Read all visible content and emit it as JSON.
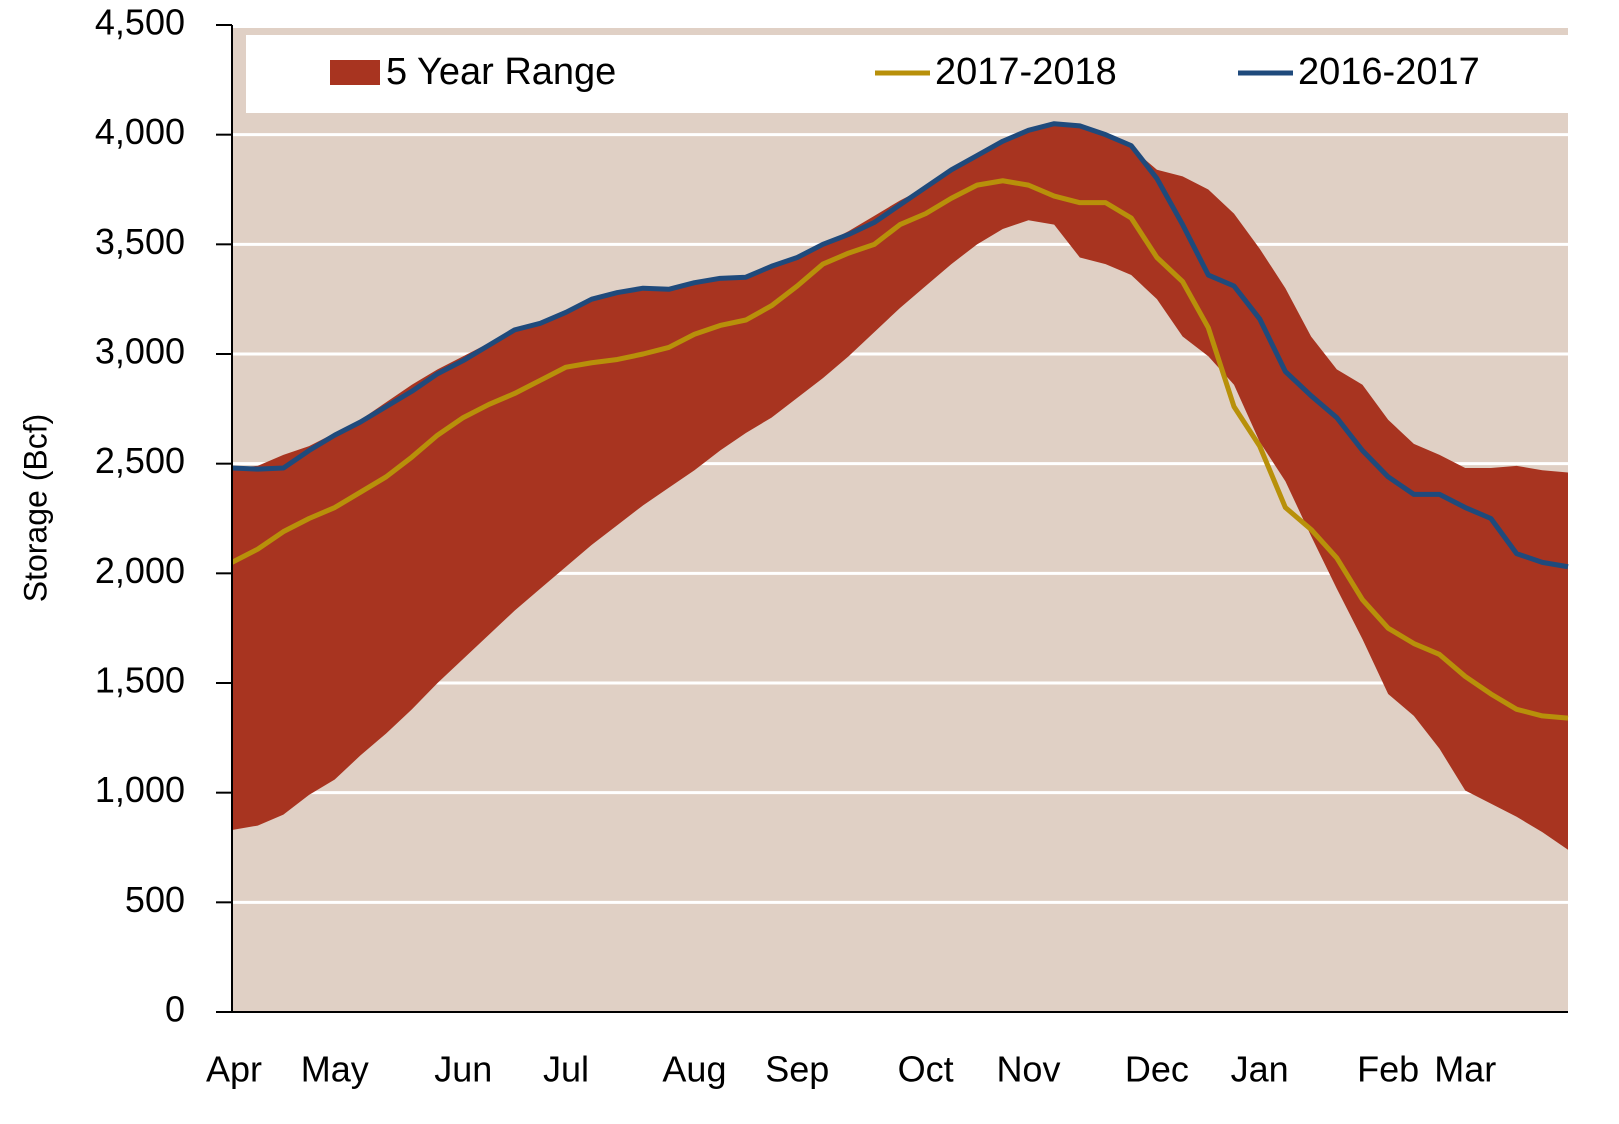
{
  "chart_data": {
    "type": "line",
    "y_label": "Storage (Bcf)",
    "categories": [
      "Apr",
      null,
      null,
      null,
      "May",
      null,
      null,
      null,
      null,
      "Jun",
      null,
      null,
      null,
      "Jul",
      null,
      null,
      null,
      null,
      "Aug",
      null,
      null,
      null,
      "Sep",
      null,
      null,
      null,
      null,
      "Oct",
      null,
      null,
      null,
      "Nov",
      null,
      null,
      null,
      null,
      "Dec",
      null,
      null,
      null,
      "Jan",
      null,
      null,
      null,
      null,
      "Feb",
      null,
      null,
      "Mar",
      null,
      null,
      null,
      null
    ],
    "ylim": [
      0,
      4500
    ],
    "yticks": [
      0,
      500,
      {
        "value": 1000,
        "label": "1,000"
      },
      {
        "value": 1500,
        "label": "1,500"
      },
      {
        "value": 2000,
        "label": "2,000"
      },
      {
        "value": 2500,
        "label": "2,500"
      },
      {
        "value": 3000,
        "label": "3,000"
      },
      {
        "value": 3500,
        "label": "3,500"
      },
      {
        "value": 4000,
        "label": "4,000"
      },
      {
        "value": 4500,
        "label": "4,500"
      }
    ],
    "grid": true,
    "plot_background": "#e0d0c5",
    "series": [
      {
        "name": "5 Year Range",
        "type": "range",
        "color": "#a83420",
        "values": [
          2480,
          2490,
          2540,
          2580,
          2640,
          2700,
          2780,
          2860,
          2930,
          2990,
          3050,
          3100,
          3140,
          3190,
          3260,
          3280,
          3300,
          3300,
          3330,
          3350,
          3360,
          3410,
          3440,
          3500,
          3560,
          3630,
          3700,
          3760,
          3850,
          3910,
          3960,
          4010,
          4040,
          4040,
          4000,
          3940,
          3840,
          3810,
          3750,
          3640,
          3480,
          3300,
          3080,
          2930,
          2860,
          2700,
          2590,
          2540,
          2480,
          2480,
          2490,
          2470,
          2460
        ],
        "low": [
          830,
          850,
          900,
          990,
          1060,
          1170,
          1270,
          1380,
          1500,
          1610,
          1720,
          1830,
          1930,
          2030,
          2130,
          2220,
          2310,
          2390,
          2470,
          2560,
          2640,
          2710,
          2800,
          2890,
          2990,
          3100,
          3210,
          3310,
          3410,
          3500,
          3570,
          3610,
          3590,
          3440,
          3410,
          3360,
          3250,
          3080,
          2990,
          2860,
          2600,
          2420,
          2170,
          1930,
          1700,
          1450,
          1350,
          1200,
          1010,
          950,
          890,
          820,
          740
        ]
      },
      {
        "name": "2017-2018",
        "type": "line",
        "color": "#b8900a",
        "values": [
          2050,
          2110,
          2190,
          2250,
          2300,
          2370,
          2440,
          2530,
          2630,
          2710,
          2770,
          2820,
          2880,
          2940,
          2960,
          2975,
          3000,
          3030,
          3090,
          3130,
          3155,
          3220,
          3310,
          3410,
          3460,
          3500,
          3590,
          3640,
          3710,
          3770,
          3790,
          3770,
          3720,
          3690,
          3690,
          3620,
          3440,
          3330,
          3120,
          2760,
          2580,
          2300,
          2200,
          2070,
          1880,
          1750,
          1680,
          1630,
          1530,
          1450,
          1380,
          1350,
          1340
        ]
      },
      {
        "name": "2016-2017",
        "type": "line",
        "color": "#1f4a7c",
        "values": [
          2480,
          2475,
          2480,
          2560,
          2630,
          2690,
          2760,
          2830,
          2910,
          2970,
          3040,
          3110,
          3140,
          3190,
          3250,
          3280,
          3300,
          3295,
          3325,
          3345,
          3350,
          3400,
          3440,
          3500,
          3545,
          3600,
          3680,
          3760,
          3840,
          3905,
          3970,
          4020,
          4050,
          4040,
          4000,
          3950,
          3800,
          3590,
          3360,
          3310,
          3160,
          2920,
          2810,
          2710,
          2560,
          2440,
          2360,
          2360,
          2300,
          2250,
          2090,
          2050,
          2030
        ]
      }
    ]
  }
}
